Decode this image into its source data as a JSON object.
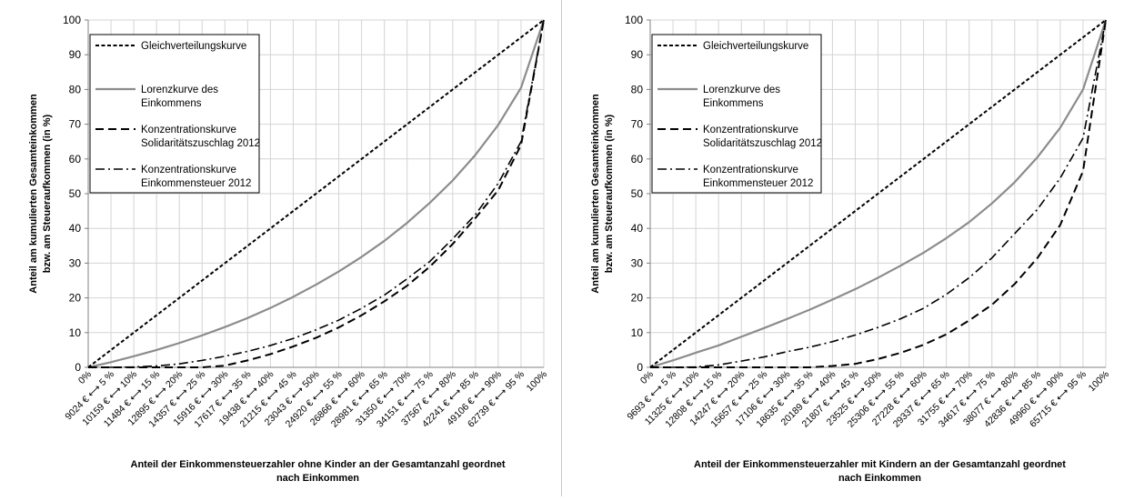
{
  "chart_data": [
    {
      "type": "line",
      "ylabel_line1": "Anteil am kumulierten Gesamteinkommen",
      "ylabel_line2": "bzw. am Steueraufkommen (in %)",
      "xlabel_line1": "Anteil der Einkommensteuerzahler ohne Kinder an der Gesamtanzahl geordnet",
      "xlabel_line2": "nach Einkommen",
      "ylim": [
        0,
        100
      ],
      "yticks": [
        "0",
        "10",
        "20",
        "30",
        "40",
        "50",
        "60",
        "70",
        "80",
        "90",
        "100"
      ],
      "xticks": [
        "0%",
        "9024 € ⟷ 5 %",
        "10159 € ⟷ 10%",
        "11484 € ⟷ 15 %",
        "12895 € ⟷ 20%",
        "14357 € ⟷ 25 %",
        "15916 € ⟷ 30%",
        "17617 € ⟷ 35 %",
        "19438 € ⟷ 40%",
        "21215 € ⟷ 45 %",
        "23043 € ⟷ 50%",
        "24920 € ⟷ 55 %",
        "26866 € ⟷ 60%",
        "28981 € ⟷ 65 %",
        "31350 € ⟷ 70%",
        "34151 € ⟷ 75 %",
        "37567 € ⟷ 80%",
        "42241 € ⟷ 85 %",
        "49106 € ⟷ 90%",
        "62739 € ⟷ 95 %",
        "100%"
      ],
      "grid": true,
      "legend_position": "top-left",
      "x": [
        0,
        5,
        10,
        15,
        20,
        25,
        30,
        35,
        40,
        45,
        50,
        55,
        60,
        65,
        70,
        75,
        80,
        85,
        90,
        95,
        100
      ],
      "series": [
        {
          "name": "Gleichverteilungskurve",
          "style": "dotted",
          "color": "#000000",
          "values": [
            0,
            5,
            10,
            15,
            20,
            25,
            30,
            35,
            40,
            45,
            50,
            55,
            60,
            65,
            70,
            75,
            80,
            85,
            90,
            95,
            100
          ]
        },
        {
          "name": "Lorenzkurve des Einkommens",
          "style": "solid",
          "color": "#8c8c8c",
          "values": [
            0,
            1.5,
            3.2,
            5,
            7,
            9.2,
            11.6,
            14.2,
            17.1,
            20.3,
            23.8,
            27.6,
            31.8,
            36.4,
            41.6,
            47.4,
            53.8,
            61.2,
            69.8,
            80.5,
            100
          ]
        },
        {
          "name": "Konzentrationskurve Solidaritätszuschlag 2012",
          "style": "dashed",
          "color": "#000000",
          "values": [
            0,
            0,
            0,
            0,
            0,
            0,
            0.5,
            2,
            3.8,
            6,
            8.5,
            11.5,
            15,
            19,
            23.5,
            29,
            35.5,
            43,
            51,
            64,
            100
          ]
        },
        {
          "name": "Konzentrationskurve Einkommensteuer 2012",
          "style": "dashdot",
          "color": "#000000",
          "values": [
            0,
            0,
            0.1,
            0.4,
            1,
            2,
            3.2,
            4.6,
            6.3,
            8.3,
            10.8,
            13.6,
            17,
            20.8,
            25.5,
            30.5,
            37,
            44,
            53,
            65,
            100
          ]
        }
      ]
    },
    {
      "type": "line",
      "ylabel_line1": "Anteil am kumulierten Gesamteinkommen",
      "ylabel_line2": "bzw. am Steueraufkommen (in %)",
      "xlabel_line1": "Anteil der Einkommensteuerzahler mit Kindern an der Gesamtanzahl geordnet",
      "xlabel_line2": "nach Einkommen",
      "ylim": [
        0,
        100
      ],
      "yticks": [
        "0",
        "10",
        "20",
        "30",
        "40",
        "50",
        "60",
        "70",
        "80",
        "90",
        "100"
      ],
      "xticks": [
        "0%",
        "9693 € ⟷ 5 %",
        "11325 € ⟷ 10%",
        "12808 € ⟷ 15 %",
        "14247 € ⟷ 20%",
        "15657 € ⟷ 25 %",
        "17106 € ⟷ 30%",
        "18635 € ⟷ 35 %",
        "20189 € ⟷ 40%",
        "21807 € ⟷ 45 %",
        "23525 € ⟷ 50%",
        "25306 € ⟷ 55 %",
        "27228 € ⟷ 60%",
        "29337 € ⟷ 65 %",
        "31755 € ⟷ 70%",
        "34617 € ⟷ 75 %",
        "38077 € ⟷ 80%",
        "42836 € ⟷ 85 %",
        "49960 € ⟷ 90%",
        "65715 € ⟷ 95 %",
        "100%"
      ],
      "grid": true,
      "legend_position": "top-left",
      "x": [
        0,
        5,
        10,
        15,
        20,
        25,
        30,
        35,
        40,
        45,
        50,
        55,
        60,
        65,
        70,
        75,
        80,
        85,
        90,
        95,
        100
      ],
      "series": [
        {
          "name": "Gleichverteilungskurve",
          "style": "dotted",
          "color": "#000000",
          "values": [
            0,
            5,
            10,
            15,
            20,
            25,
            30,
            35,
            40,
            45,
            50,
            55,
            60,
            65,
            70,
            75,
            80,
            85,
            90,
            95,
            100
          ]
        },
        {
          "name": "Lorenzkurve des Einkommens",
          "style": "solid",
          "color": "#8c8c8c",
          "values": [
            0,
            2,
            4.2,
            6.3,
            8.8,
            11.3,
            13.9,
            16.6,
            19.5,
            22.5,
            25.8,
            29.3,
            33,
            37.2,
            41.8,
            47.2,
            53.3,
            60.5,
            69,
            80,
            100
          ]
        },
        {
          "name": "Konzentrationskurve Solidaritätszuschlag 2012",
          "style": "dashed",
          "color": "#000000",
          "values": [
            0,
            0,
            0,
            0,
            0,
            0,
            0,
            0,
            0.4,
            1,
            2.4,
            4.2,
            6.5,
            9.5,
            13.5,
            18,
            24,
            31.5,
            41,
            56.5,
            100
          ]
        },
        {
          "name": "Konzentrationskurve Einkommensteuer 2012",
          "style": "dashdot",
          "color": "#000000",
          "values": [
            0,
            0,
            0.1,
            0.7,
            1.8,
            3,
            4.5,
            5.8,
            7.4,
            9.3,
            11.5,
            14,
            17,
            21,
            25.8,
            31.5,
            38.5,
            45.5,
            54.5,
            66,
            100
          ]
        }
      ]
    }
  ],
  "legend": [
    {
      "line1": "Gleichverteilungskurve",
      "line2": ""
    },
    {
      "line1": "Lorenzkurve des",
      "line2": "Einkommens"
    },
    {
      "line1": "Konzentrationskurve",
      "line2": "Solidaritätszuschlag 2012"
    },
    {
      "line1": "Konzentrationskurve",
      "line2": "Einkommensteuer 2012"
    }
  ]
}
